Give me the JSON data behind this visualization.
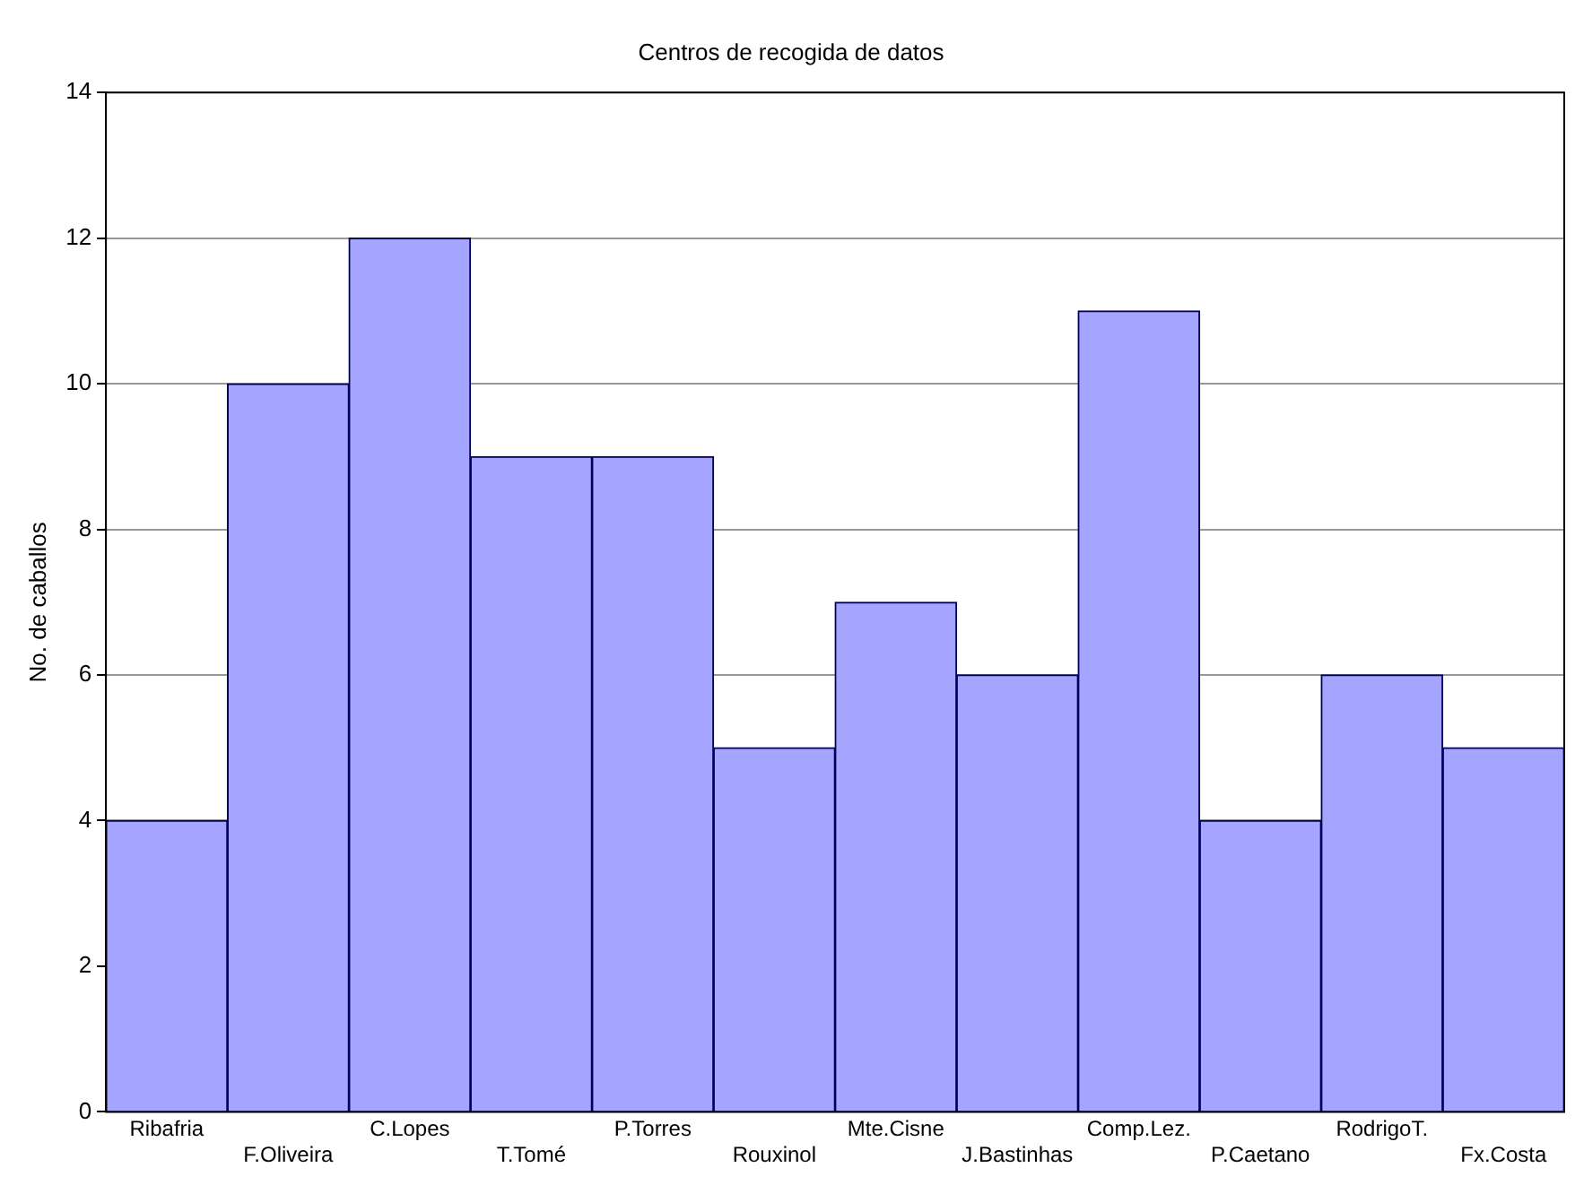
{
  "chart_data": {
    "type": "bar",
    "title": "Centros de recogida de datos",
    "ylabel": "No. de caballos",
    "categories": [
      "Ribafria",
      "F.Oliveira",
      "C.Lopes",
      "T.Tomé",
      "P.Torres",
      "Rouxinol",
      "Mte.Cisne",
      "J.Bastinhas",
      "Comp.Lez.",
      "P.Caetano",
      "RodrigoT.",
      "Fx.Costa"
    ],
    "values": [
      4,
      10,
      12,
      9,
      9,
      5,
      7,
      6,
      11,
      4,
      6,
      5
    ],
    "color": "#a5a5ff",
    "ylim": [
      0,
      14
    ],
    "yticks": [
      0,
      2,
      4,
      6,
      8,
      10,
      12,
      14
    ],
    "grid": "y",
    "legend": false
  }
}
